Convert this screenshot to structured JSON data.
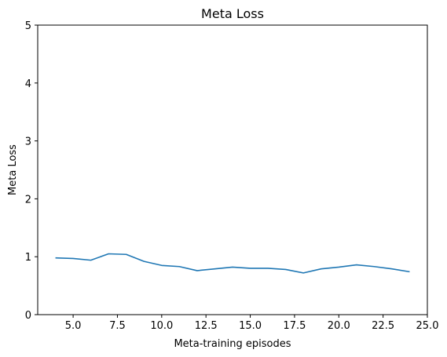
{
  "chart_data": {
    "type": "line",
    "title": "Meta Loss",
    "xlabel": "Meta-training episodes",
    "ylabel": "Meta Loss",
    "xlim": [
      3.0,
      25.0
    ],
    "ylim": [
      0,
      5
    ],
    "x_ticks": [
      5.0,
      7.5,
      10.0,
      12.5,
      15.0,
      17.5,
      20.0,
      22.5,
      25.0
    ],
    "x_tick_labels": [
      "5.0",
      "7.5",
      "10.0",
      "12.5",
      "15.0",
      "17.5",
      "20.0",
      "22.5",
      "25.0"
    ],
    "y_ticks": [
      0,
      1,
      2,
      3,
      4,
      5
    ],
    "y_tick_labels": [
      "0",
      "1",
      "2",
      "3",
      "4",
      "5"
    ],
    "grid": false,
    "legend": "none",
    "series": [
      {
        "color": "#1f77b4",
        "x": [
          4,
          5,
          6,
          7,
          8,
          9,
          10,
          11,
          12,
          13,
          14,
          15,
          16,
          17,
          18,
          19,
          20,
          21,
          22,
          23,
          24
        ],
        "y": [
          0.98,
          0.97,
          0.94,
          1.05,
          1.04,
          0.92,
          0.85,
          0.83,
          0.76,
          0.79,
          0.82,
          0.8,
          0.8,
          0.78,
          0.72,
          0.79,
          0.82,
          0.86,
          0.83,
          0.79,
          0.74
        ]
      }
    ]
  }
}
